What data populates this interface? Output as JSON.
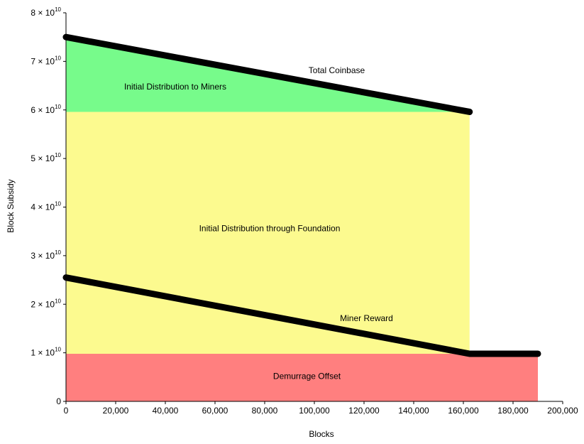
{
  "chart_data": {
    "type": "area",
    "xlabel": "Blocks",
    "ylabel": "Block Subsidy",
    "xlim": [
      0,
      200000
    ],
    "ylim": [
      0,
      80000000000
    ],
    "x_ticks": [
      {
        "value": 0,
        "label": "0"
      },
      {
        "value": 20000,
        "label": "20,000"
      },
      {
        "value": 40000,
        "label": "40,000"
      },
      {
        "value": 60000,
        "label": "60,000"
      },
      {
        "value": 80000,
        "label": "80,000"
      },
      {
        "value": 100000,
        "label": "100,000"
      },
      {
        "value": 120000,
        "label": "120,000"
      },
      {
        "value": 140000,
        "label": "140,000"
      },
      {
        "value": 160000,
        "label": "160,000"
      },
      {
        "value": 180000,
        "label": "180,000"
      },
      {
        "value": 200000,
        "label": "200,000"
      }
    ],
    "y_ticks": [
      {
        "value": 0,
        "label": "0"
      },
      {
        "value": 10000000000,
        "mantissa": "1",
        "base": "10",
        "exp": "10"
      },
      {
        "value": 20000000000,
        "mantissa": "2",
        "base": "10",
        "exp": "10"
      },
      {
        "value": 30000000000,
        "mantissa": "3",
        "base": "10",
        "exp": "10"
      },
      {
        "value": 40000000000,
        "mantissa": "4",
        "base": "10",
        "exp": "10"
      },
      {
        "value": 50000000000,
        "mantissa": "5",
        "base": "10",
        "exp": "10"
      },
      {
        "value": 60000000000,
        "mantissa": "6",
        "base": "10",
        "exp": "10"
      },
      {
        "value": 70000000000,
        "mantissa": "7",
        "base": "10",
        "exp": "10"
      },
      {
        "value": 80000000000,
        "mantissa": "8",
        "base": "10",
        "exp": "10"
      }
    ],
    "regions": [
      {
        "label": "Demurrage Offset",
        "color": "#ff7f7f",
        "x_range": [
          0,
          190000
        ],
        "y_range": [
          0,
          9800000000
        ],
        "label_pos": {
          "x": 97000,
          "y": 4600000000
        }
      },
      {
        "label": "Initial Distribution through Foundation",
        "color": "#fcfa8f",
        "x_range": [
          0,
          162500
        ],
        "y_range": [
          9800000000,
          59600000000
        ],
        "label_pos": {
          "x": 82000,
          "y": 35000000000
        }
      },
      {
        "label": "Initial Distribution to Miners",
        "color": "#77fb8b",
        "top_line": [
          [
            0,
            75000000000
          ],
          [
            162500,
            59600000000
          ]
        ],
        "bottom_y": 59600000000,
        "label_pos": {
          "x": 44000,
          "y": 64200000000
        }
      }
    ],
    "series": [
      {
        "name": "Total Coinbase",
        "color": "#000000",
        "x": [
          0,
          162500
        ],
        "y": [
          75000000000,
          59600000000
        ],
        "label_pos": {
          "x": 109000,
          "y": 67600000000
        }
      },
      {
        "name": "Miner Reward",
        "color": "#000000",
        "x": [
          0,
          162500,
          190000
        ],
        "y": [
          25500000000,
          9800000000,
          9800000000
        ],
        "label_pos": {
          "x": 121000,
          "y": 16500000000
        }
      }
    ]
  }
}
